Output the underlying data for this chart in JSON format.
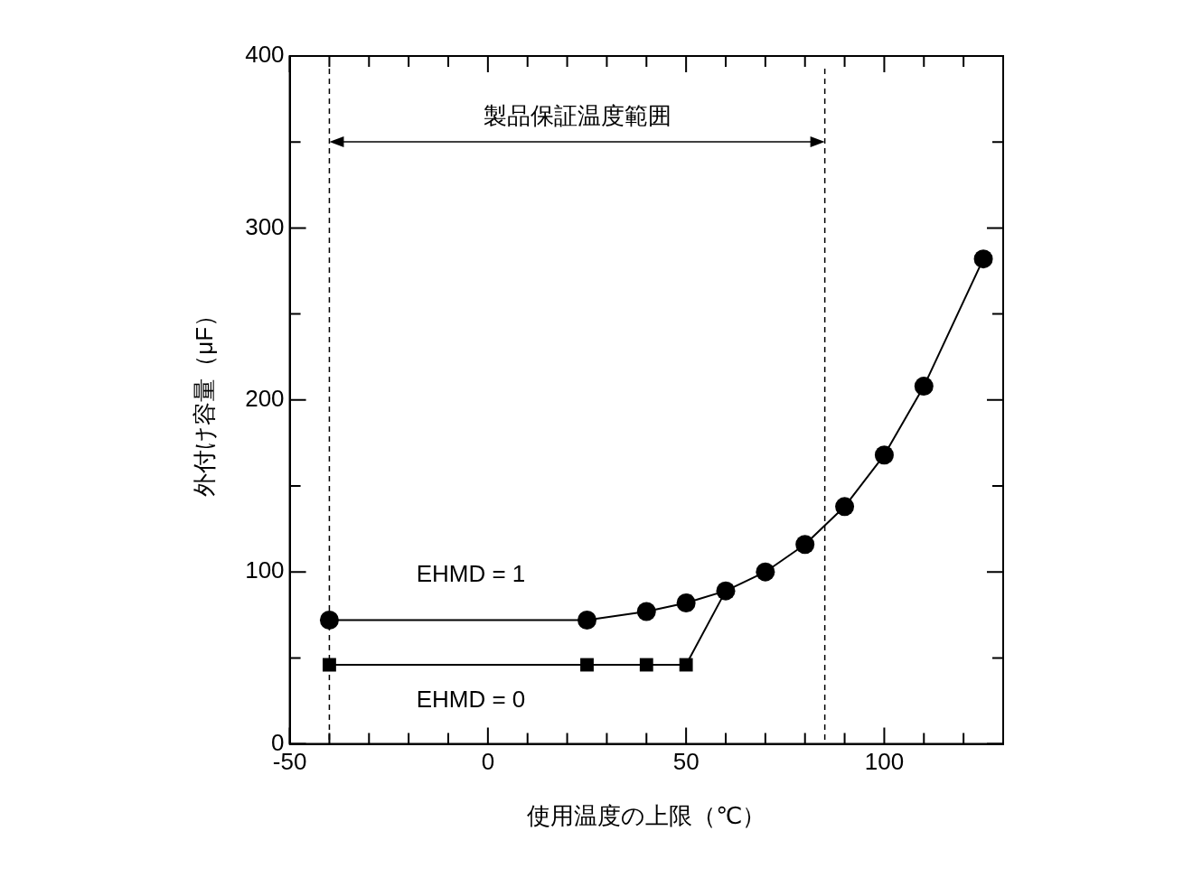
{
  "chart_data": {
    "type": "line",
    "xlabel": "使用温度の上限（℃）",
    "ylabel": "外付け容量（μF）",
    "xlim": [
      -50,
      130
    ],
    "xticks": [
      -50,
      {
        "value": -40,
        "label": null
      },
      {
        "value": -30,
        "label": null
      },
      {
        "value": -20,
        "label": null
      },
      {
        "value": -10,
        "label": null
      },
      0,
      {
        "value": 10,
        "label": null
      },
      {
        "value": 20,
        "label": null
      },
      {
        "value": 30,
        "label": null
      },
      {
        "value": 40,
        "label": null
      },
      50,
      {
        "value": 60,
        "label": null
      },
      {
        "value": 70,
        "label": null
      },
      {
        "value": 80,
        "label": null
      },
      {
        "value": 90,
        "label": null
      },
      100,
      {
        "value": 110,
        "label": null
      },
      {
        "value": 120,
        "label": null
      }
    ],
    "ylim": [
      0,
      400
    ],
    "yticks": [
      0,
      {
        "value": 50,
        "label": null
      },
      100,
      {
        "value": 150,
        "label": null
      },
      200,
      {
        "value": 250,
        "label": null
      },
      300,
      {
        "value": 350,
        "label": null
      },
      400
    ],
    "series": [
      {
        "name": "EHMD = 1",
        "color": "#000000",
        "marker": "circle",
        "x": [
          -40,
          25,
          40,
          50,
          60,
          70,
          80,
          90,
          100,
          110,
          125
        ],
        "values": [
          72,
          72,
          77,
          82,
          89,
          100,
          116,
          138,
          168,
          208,
          282
        ]
      },
      {
        "name": "EHMD = 0",
        "color": "#000000",
        "marker": "square",
        "x": [
          -40,
          25,
          40,
          50,
          60
        ],
        "values": [
          46,
          46,
          46,
          46,
          89
        ]
      }
    ],
    "ref_lines": [
      {
        "axis": "x",
        "value": -40,
        "line_style": "dashed",
        "color": "#000000"
      },
      {
        "axis": "x",
        "value": 85,
        "line_style": "dashed",
        "color": "#000000"
      }
    ],
    "annotations": [
      "製品保証温度範囲"
    ],
    "legend": false,
    "grid": false,
    "line_style": "solid"
  }
}
